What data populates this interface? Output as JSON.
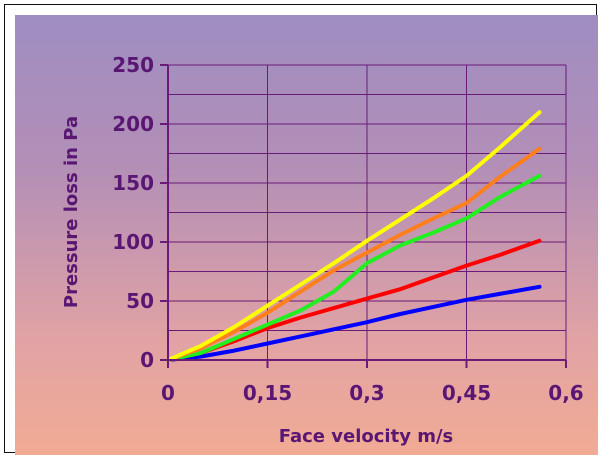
{
  "chart_data": {
    "type": "line",
    "title": "",
    "xlabel": "Face velocity m/s",
    "ylabel": "Pressure loss in Pa",
    "xlim": [
      0,
      0.6
    ],
    "ylim": [
      0,
      250
    ],
    "x_ticks": [
      "0",
      "0,15",
      "0,3",
      "0,45",
      "0,6"
    ],
    "y_ticks": [
      "0",
      "50",
      "100",
      "150",
      "200",
      "250"
    ],
    "grid": true,
    "legend": "none",
    "series": [
      {
        "color": "#0000ff",
        "points": [
          [
            0,
            0
          ],
          [
            0.05,
            3
          ],
          [
            0.1,
            8
          ],
          [
            0.15,
            14
          ],
          [
            0.2,
            20
          ],
          [
            0.25,
            26
          ],
          [
            0.3,
            32
          ],
          [
            0.35,
            39
          ],
          [
            0.4,
            45
          ],
          [
            0.45,
            51
          ],
          [
            0.5,
            56
          ],
          [
            0.56,
            62
          ]
        ]
      },
      {
        "color": "#ff0000",
        "points": [
          [
            0,
            0
          ],
          [
            0.05,
            6
          ],
          [
            0.1,
            16
          ],
          [
            0.15,
            27
          ],
          [
            0.2,
            36
          ],
          [
            0.25,
            44
          ],
          [
            0.3,
            52
          ],
          [
            0.35,
            60
          ],
          [
            0.4,
            70
          ],
          [
            0.45,
            80
          ],
          [
            0.5,
            89
          ],
          [
            0.56,
            101
          ]
        ]
      },
      {
        "color": "#22ee22",
        "points": [
          [
            0,
            0
          ],
          [
            0.05,
            6
          ],
          [
            0.1,
            18
          ],
          [
            0.15,
            30
          ],
          [
            0.2,
            42
          ],
          [
            0.25,
            58
          ],
          [
            0.3,
            82
          ],
          [
            0.35,
            97
          ],
          [
            0.4,
            108
          ],
          [
            0.45,
            120
          ],
          [
            0.5,
            138
          ],
          [
            0.56,
            156
          ]
        ]
      },
      {
        "color": "#ff7f1e",
        "points": [
          [
            0,
            0
          ],
          [
            0.05,
            10
          ],
          [
            0.1,
            24
          ],
          [
            0.15,
            40
          ],
          [
            0.2,
            58
          ],
          [
            0.25,
            76
          ],
          [
            0.3,
            91
          ],
          [
            0.35,
            106
          ],
          [
            0.4,
            120
          ],
          [
            0.45,
            133
          ],
          [
            0.5,
            155
          ],
          [
            0.56,
            179
          ]
        ]
      },
      {
        "color": "#ffff00",
        "points": [
          [
            0,
            0
          ],
          [
            0.05,
            12
          ],
          [
            0.1,
            28
          ],
          [
            0.15,
            46
          ],
          [
            0.2,
            64
          ],
          [
            0.25,
            82
          ],
          [
            0.3,
            101
          ],
          [
            0.35,
            119
          ],
          [
            0.4,
            137
          ],
          [
            0.45,
            156
          ],
          [
            0.5,
            180
          ],
          [
            0.56,
            210
          ]
        ]
      }
    ]
  },
  "style": {
    "axis_color": "#6a1b78",
    "grid_color": "#6a1b78",
    "text_color": "#5a1673"
  }
}
